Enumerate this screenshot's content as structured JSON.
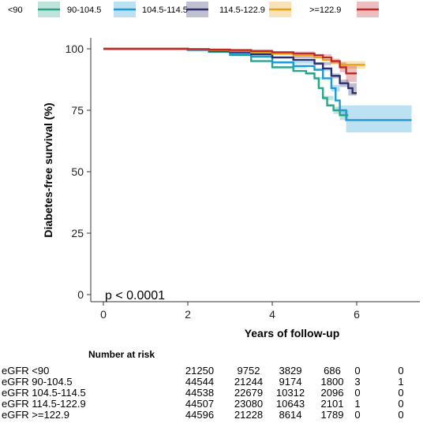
{
  "chart_data": {
    "type": "line",
    "subtype": "kaplan-meier",
    "title": "",
    "xlabel": "Years of follow-up",
    "ylabel": "Diabetes-free survival (%)",
    "xlim": [
      0,
      7.3
    ],
    "ylim": [
      0,
      100
    ],
    "x_ticks": [
      "0",
      "2",
      "4",
      "6"
    ],
    "y_ticks": [
      "0",
      "25",
      "50",
      "75",
      "100"
    ],
    "grid": false,
    "legend_position": "top",
    "annotation": "p < 0.0001",
    "series": [
      {
        "name": "<90",
        "color": "#2aa58a",
        "points": [
          [
            0,
            100
          ],
          [
            1,
            100
          ],
          [
            2,
            99.5
          ],
          [
            2.5,
            98.8
          ],
          [
            3,
            97.5
          ],
          [
            3.5,
            95
          ],
          [
            4,
            92.5
          ],
          [
            4.5,
            91
          ],
          [
            4.8,
            90
          ],
          [
            5,
            88
          ],
          [
            5.1,
            84
          ],
          [
            5.2,
            80
          ],
          [
            5.3,
            77
          ],
          [
            5.45,
            75
          ],
          [
            5.6,
            73
          ],
          [
            5.8,
            73
          ]
        ],
        "band": [
          [
            0,
            100,
            100
          ],
          [
            2,
            99.7,
            99.3
          ],
          [
            3,
            97.8,
            97.2
          ],
          [
            4,
            92.9,
            92.1
          ],
          [
            4.8,
            90.5,
            89.5
          ],
          [
            5,
            88.6,
            87.4
          ],
          [
            5.2,
            80.9,
            79.1
          ],
          [
            5.45,
            76.5,
            73.5
          ],
          [
            5.6,
            75,
            71
          ],
          [
            5.8,
            75,
            71
          ]
        ]
      },
      {
        "name": "90-104.5",
        "color": "#1e9ad6",
        "points": [
          [
            0,
            100
          ],
          [
            1,
            100
          ],
          [
            2,
            99.6
          ],
          [
            2.5,
            99
          ],
          [
            3,
            98.2
          ],
          [
            3.5,
            96.8
          ],
          [
            4,
            94.5
          ],
          [
            4.5,
            93
          ],
          [
            5,
            91.5
          ],
          [
            5.2,
            88
          ],
          [
            5.4,
            84
          ],
          [
            5.5,
            79
          ],
          [
            5.6,
            75
          ],
          [
            5.75,
            71
          ],
          [
            7.3,
            71
          ]
        ],
        "band": [
          [
            0,
            100,
            100
          ],
          [
            2,
            99.8,
            99.4
          ],
          [
            3,
            98.5,
            97.9
          ],
          [
            4,
            95,
            94
          ],
          [
            5,
            92.1,
            90.9
          ],
          [
            5.4,
            85.3,
            82.7
          ],
          [
            5.6,
            77,
            73
          ],
          [
            5.75,
            77,
            66
          ],
          [
            7.3,
            77,
            66
          ]
        ]
      },
      {
        "name": "104.5-114.5",
        "color": "#2e2f6e",
        "points": [
          [
            0,
            100
          ],
          [
            1,
            100
          ],
          [
            2,
            99.7
          ],
          [
            2.5,
            99.2
          ],
          [
            3,
            98.7
          ],
          [
            3.5,
            97.8
          ],
          [
            4,
            96.5
          ],
          [
            4.5,
            95.5
          ],
          [
            5,
            94
          ],
          [
            5.2,
            92
          ],
          [
            5.4,
            89
          ],
          [
            5.6,
            86
          ],
          [
            5.8,
            84
          ],
          [
            5.9,
            82
          ],
          [
            6,
            82
          ]
        ],
        "band": [
          [
            0,
            100,
            100
          ],
          [
            2,
            99.9,
            99.5
          ],
          [
            3,
            98.9,
            98.5
          ],
          [
            4,
            96.9,
            96.1
          ],
          [
            5,
            94.6,
            93.4
          ],
          [
            5.4,
            90,
            88
          ],
          [
            5.6,
            87.5,
            84.5
          ],
          [
            5.8,
            86,
            81
          ],
          [
            6,
            86,
            78
          ]
        ]
      },
      {
        "name": "114.5-122.9",
        "color": "#e8a317",
        "points": [
          [
            0,
            100
          ],
          [
            1,
            100
          ],
          [
            2,
            99.8
          ],
          [
            2.5,
            99.5
          ],
          [
            3,
            99.2
          ],
          [
            3.5,
            98.6
          ],
          [
            4,
            98
          ],
          [
            4.5,
            97.3
          ],
          [
            5,
            96.5
          ],
          [
            5.2,
            95.5
          ],
          [
            5.4,
            94.5
          ],
          [
            5.6,
            93.5
          ],
          [
            6.2,
            93.5
          ]
        ],
        "band": [
          [
            0,
            100,
            100
          ],
          [
            2,
            99.9,
            99.7
          ],
          [
            3,
            99.4,
            99
          ],
          [
            4,
            98.3,
            97.7
          ],
          [
            5,
            96.9,
            96.1
          ],
          [
            5.4,
            95.3,
            93.7
          ],
          [
            5.6,
            95,
            92
          ],
          [
            6.2,
            95,
            92
          ]
        ]
      },
      {
        "name": ">=122.9",
        "color": "#c0282d",
        "points": [
          [
            0,
            100
          ],
          [
            1,
            100
          ],
          [
            2,
            99.9
          ],
          [
            2.5,
            99.7
          ],
          [
            3,
            99.5
          ],
          [
            3.5,
            99.1
          ],
          [
            4,
            98.6
          ],
          [
            4.5,
            98.1
          ],
          [
            5,
            97.4
          ],
          [
            5.2,
            96.5
          ],
          [
            5.4,
            95
          ],
          [
            5.6,
            92.5
          ],
          [
            5.75,
            90
          ],
          [
            6,
            90
          ]
        ],
        "band": [
          [
            0,
            100,
            100
          ],
          [
            2,
            100,
            99.8
          ],
          [
            3,
            99.7,
            99.3
          ],
          [
            4,
            98.9,
            98.3
          ],
          [
            5,
            97.8,
            97
          ],
          [
            5.4,
            96,
            94
          ],
          [
            5.6,
            94.5,
            90.5
          ],
          [
            5.75,
            93,
            86.5
          ],
          [
            6,
            93,
            86.5
          ]
        ]
      }
    ],
    "risk_table": {
      "title": "Number at risk",
      "rows": [
        {
          "label": "eGFR <90",
          "counts": [
            "21250",
            "9752",
            "3829",
            "686",
            "0",
            "0"
          ]
        },
        {
          "label": "eGFR 90-104.5",
          "counts": [
            "44544",
            "21244",
            "9174",
            "1800",
            "3",
            "1"
          ]
        },
        {
          "label": "eGFR 104.5-114.5",
          "counts": [
            "44538",
            "22679",
            "10312",
            "2096",
            "0",
            "0"
          ]
        },
        {
          "label": "eGFR 114.5-122.9",
          "counts": [
            "44507",
            "23080",
            "10643",
            "2101",
            "1",
            "0"
          ]
        },
        {
          "label": "eGFR >=122.9",
          "counts": [
            "44596",
            "21228",
            "8614",
            "1789",
            "0",
            "0"
          ]
        }
      ]
    }
  }
}
